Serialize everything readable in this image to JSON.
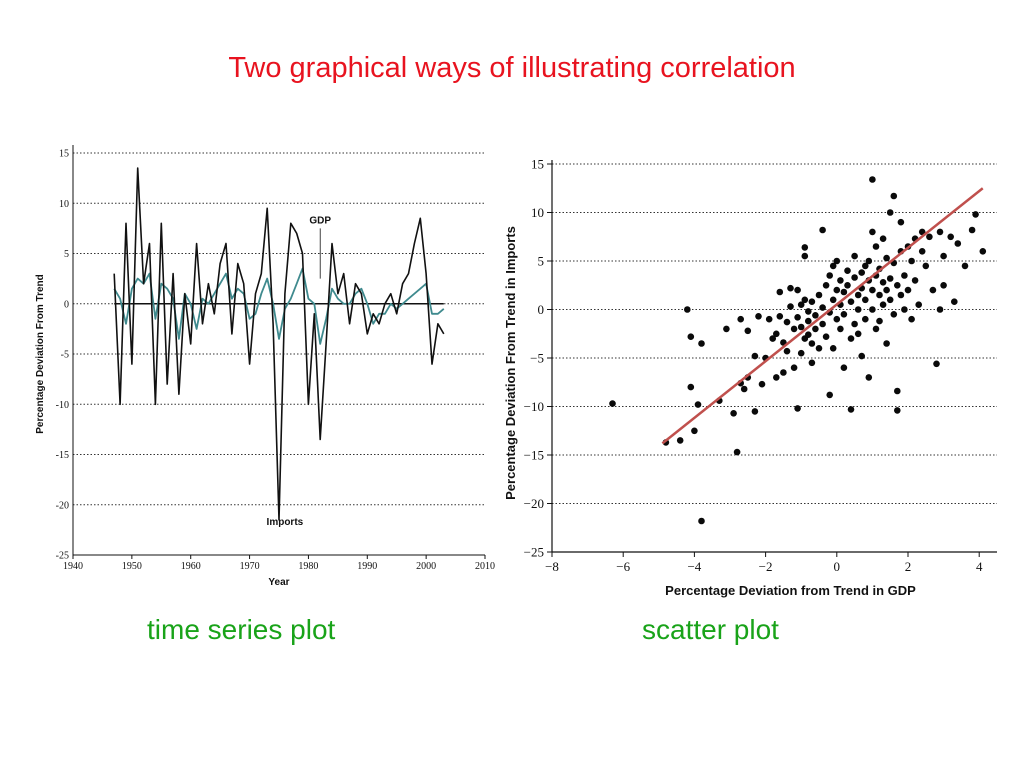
{
  "title": "Two graphical ways of illustrating correlation",
  "captions": {
    "left": "time series plot",
    "right": "scatter plot"
  },
  "colors": {
    "title": "#e8131f",
    "caption": "#19a319",
    "gdp": "#3f8a8e",
    "imports": "#111111",
    "fit": "#c0504d"
  },
  "chart_data": [
    {
      "type": "line",
      "xlabel": "Year",
      "ylabel": "Percentage Deviation From Trend",
      "xlim": [
        1940,
        2010
      ],
      "ylim": [
        -25,
        15
      ],
      "xticks": [
        1940,
        1950,
        1960,
        1970,
        1980,
        1990,
        2000,
        2010
      ],
      "yticks": [
        15,
        10,
        5,
        0,
        -5,
        -10,
        -15,
        -20,
        -25
      ],
      "grid": "horizontal dotted",
      "annotations": [
        {
          "text": "GDP",
          "x": 1982,
          "y": 8
        },
        {
          "text": "Imports",
          "x": 1976,
          "y": -22
        }
      ],
      "series": [
        {
          "name": "GDP",
          "x": [
            1947,
            1948,
            1949,
            1950,
            1951,
            1952,
            1953,
            1954,
            1955,
            1956,
            1957,
            1958,
            1959,
            1960,
            1961,
            1962,
            1963,
            1964,
            1965,
            1966,
            1967,
            1968,
            1969,
            1970,
            1971,
            1972,
            1973,
            1974,
            1975,
            1976,
            1977,
            1978,
            1979,
            1980,
            1981,
            1982,
            1983,
            1984,
            1985,
            1986,
            1987,
            1988,
            1989,
            1990,
            1991,
            1992,
            1993,
            1994,
            1995,
            1996,
            1997,
            1998,
            1999,
            2000,
            2001,
            2002,
            2003
          ],
          "values": [
            1.5,
            0.5,
            -2.0,
            1.5,
            2.5,
            2.0,
            3.0,
            -1.5,
            2.0,
            1.5,
            0.5,
            -3.5,
            1.0,
            0.0,
            -2.5,
            0.5,
            0.0,
            1.0,
            2.0,
            3.0,
            0.5,
            1.5,
            1.0,
            -1.5,
            -1.0,
            1.0,
            2.5,
            0.0,
            -3.5,
            -0.5,
            0.5,
            2.0,
            3.5,
            0.5,
            0.0,
            -4.0,
            -1.5,
            1.5,
            0.5,
            0.0,
            0.0,
            1.0,
            1.5,
            0.0,
            -2.0,
            -1.0,
            -1.0,
            0.0,
            -0.5,
            0.0,
            0.5,
            1.0,
            1.5,
            2.0,
            -1.0,
            -1.0,
            -0.5
          ]
        },
        {
          "name": "Imports",
          "x": [
            1947,
            1948,
            1949,
            1950,
            1951,
            1952,
            1953,
            1954,
            1955,
            1956,
            1957,
            1958,
            1959,
            1960,
            1961,
            1962,
            1963,
            1964,
            1965,
            1966,
            1967,
            1968,
            1969,
            1970,
            1971,
            1972,
            1973,
            1974,
            1975,
            1976,
            1977,
            1978,
            1979,
            1980,
            1981,
            1982,
            1983,
            1984,
            1985,
            1986,
            1987,
            1988,
            1989,
            1990,
            1991,
            1992,
            1993,
            1994,
            1995,
            1996,
            1997,
            1998,
            1999,
            2000,
            2001,
            2002,
            2003
          ],
          "values": [
            3.0,
            -10.0,
            8.0,
            -6.0,
            13.5,
            2.0,
            6.0,
            -10.0,
            8.0,
            -8.0,
            3.0,
            -9.0,
            1.0,
            -4.0,
            6.0,
            -2.0,
            2.0,
            -1.0,
            4.0,
            6.0,
            -3.0,
            4.0,
            2.0,
            -6.0,
            1.0,
            3.0,
            9.5,
            -2.0,
            -21.5,
            1.0,
            8.0,
            7.0,
            5.0,
            -10.0,
            -1.0,
            -13.5,
            -4.0,
            6.0,
            1.0,
            3.0,
            -2.0,
            2.0,
            1.0,
            -3.0,
            -1.0,
            -2.0,
            0.0,
            1.0,
            -1.0,
            2.0,
            3.0,
            6.0,
            8.5,
            3.0,
            -6.0,
            -2.0,
            -3.0
          ]
        }
      ]
    },
    {
      "type": "scatter",
      "xlabel": "Percentage Deviation from Trend in GDP",
      "ylabel": "Percentage Deviation From Trend in Imports",
      "xlim": [
        -8,
        4.5
      ],
      "ylim": [
        -25,
        15
      ],
      "xticks": [
        -8,
        -6,
        -4,
        -2,
        0,
        2,
        4
      ],
      "xticklabels": [
        "−8",
        "−6",
        "−4",
        "−2",
        "0",
        "2",
        "4"
      ],
      "yticks": [
        15,
        10,
        5,
        0,
        -5,
        -10,
        -15,
        -20,
        -25
      ],
      "yticklabels": [
        "15",
        "10",
        "5",
        "0",
        "−5",
        "−10",
        "−15",
        "−20",
        "−25"
      ],
      "grid": "horizontal dotted",
      "fit_line": {
        "x": [
          -4.9,
          4.1
        ],
        "y": [
          -13.8,
          12.5
        ]
      },
      "points": [
        [
          -6.3,
          -9.7
        ],
        [
          -4.8,
          -13.7
        ],
        [
          -4.4,
          -13.5
        ],
        [
          -4.2,
          0.0
        ],
        [
          -4.1,
          -8.0
        ],
        [
          -4.1,
          -2.8
        ],
        [
          -4.0,
          -12.5
        ],
        [
          -3.9,
          -9.8
        ],
        [
          -3.8,
          -21.8
        ],
        [
          -3.8,
          -3.5
        ],
        [
          -3.3,
          -9.4
        ],
        [
          -3.1,
          -2.0
        ],
        [
          -2.9,
          -10.7
        ],
        [
          -2.8,
          -14.7
        ],
        [
          -2.7,
          -7.6
        ],
        [
          -2.7,
          -1.0
        ],
        [
          -2.6,
          -8.2
        ],
        [
          -2.5,
          -7.0
        ],
        [
          -2.5,
          -2.2
        ],
        [
          -2.3,
          -10.5
        ],
        [
          -2.3,
          -4.8
        ],
        [
          -2.2,
          -0.7
        ],
        [
          -2.1,
          -7.7
        ],
        [
          -2.0,
          -5.0
        ],
        [
          -1.9,
          -1.0
        ],
        [
          -1.8,
          -3.0
        ],
        [
          -1.7,
          -7.0
        ],
        [
          -1.7,
          -2.5
        ],
        [
          -1.6,
          -0.7
        ],
        [
          -1.6,
          1.8
        ],
        [
          -1.5,
          -6.5
        ],
        [
          -1.5,
          -3.4
        ],
        [
          -1.4,
          -4.3
        ],
        [
          -1.4,
          -1.3
        ],
        [
          -1.3,
          2.2
        ],
        [
          -1.3,
          0.3
        ],
        [
          -1.2,
          -6.0
        ],
        [
          -1.2,
          -2.0
        ],
        [
          -1.1,
          -10.2
        ],
        [
          -1.1,
          -0.8
        ],
        [
          -1.1,
          2.0
        ],
        [
          -1.0,
          -4.5
        ],
        [
          -1.0,
          -1.8
        ],
        [
          -1.0,
          0.5
        ],
        [
          -0.9,
          6.4
        ],
        [
          -0.9,
          5.5
        ],
        [
          -0.9,
          -3.0
        ],
        [
          -0.9,
          1.0
        ],
        [
          -0.8,
          -1.2
        ],
        [
          -0.8,
          -0.2
        ],
        [
          -0.8,
          -2.6
        ],
        [
          -0.7,
          -3.5
        ],
        [
          -0.7,
          -5.5
        ],
        [
          -0.7,
          0.8
        ],
        [
          -0.6,
          -2.0
        ],
        [
          -0.6,
          -0.6
        ],
        [
          -0.5,
          1.5
        ],
        [
          -0.5,
          -4.0
        ],
        [
          -0.4,
          8.2
        ],
        [
          -0.4,
          -1.5
        ],
        [
          -0.4,
          0.2
        ],
        [
          -0.3,
          2.5
        ],
        [
          -0.3,
          -2.8
        ],
        [
          -0.2,
          -8.8
        ],
        [
          -0.2,
          3.5
        ],
        [
          -0.2,
          -0.3
        ],
        [
          -0.1,
          4.5
        ],
        [
          -0.1,
          1.0
        ],
        [
          -0.1,
          -4.0
        ],
        [
          0.0,
          2.0
        ],
        [
          0.0,
          -1.0
        ],
        [
          0.0,
          5.0
        ],
        [
          0.1,
          0.5
        ],
        [
          0.1,
          -2.0
        ],
        [
          0.1,
          3.0
        ],
        [
          0.2,
          1.8
        ],
        [
          0.2,
          -6.0
        ],
        [
          0.2,
          -0.5
        ],
        [
          0.3,
          4.0
        ],
        [
          0.3,
          2.5
        ],
        [
          0.4,
          -10.3
        ],
        [
          0.4,
          0.8
        ],
        [
          0.4,
          -3.0
        ],
        [
          0.5,
          3.3
        ],
        [
          0.5,
          -1.5
        ],
        [
          0.5,
          5.5
        ],
        [
          0.6,
          1.5
        ],
        [
          0.6,
          0.0
        ],
        [
          0.6,
          -2.5
        ],
        [
          0.7,
          3.8
        ],
        [
          0.7,
          2.2
        ],
        [
          0.7,
          -4.8
        ],
        [
          0.8,
          4.5
        ],
        [
          0.8,
          1.0
        ],
        [
          0.8,
          -1.0
        ],
        [
          0.9,
          3.0
        ],
        [
          0.9,
          -7.0
        ],
        [
          0.9,
          5.0
        ],
        [
          1.0,
          2.0
        ],
        [
          1.0,
          13.4
        ],
        [
          1.0,
          8.0
        ],
        [
          1.0,
          0.0
        ],
        [
          1.1,
          3.5
        ],
        [
          1.1,
          -2.0
        ],
        [
          1.1,
          6.5
        ],
        [
          1.2,
          1.5
        ],
        [
          1.2,
          4.2
        ],
        [
          1.2,
          -1.2
        ],
        [
          1.3,
          7.3
        ],
        [
          1.3,
          2.8
        ],
        [
          1.3,
          0.5
        ],
        [
          1.4,
          5.3
        ],
        [
          1.4,
          -3.5
        ],
        [
          1.4,
          2.0
        ],
        [
          1.5,
          10.0
        ],
        [
          1.5,
          3.2
        ],
        [
          1.5,
          1.0
        ],
        [
          1.6,
          11.7
        ],
        [
          1.6,
          -0.5
        ],
        [
          1.6,
          4.8
        ],
        [
          1.7,
          2.5
        ],
        [
          1.7,
          -8.4
        ],
        [
          1.7,
          -10.4
        ],
        [
          1.8,
          9.0
        ],
        [
          1.8,
          6.0
        ],
        [
          1.8,
          1.5
        ],
        [
          1.9,
          3.5
        ],
        [
          1.9,
          0.0
        ],
        [
          2.0,
          6.5
        ],
        [
          2.0,
          2.0
        ],
        [
          2.1,
          -1.0
        ],
        [
          2.1,
          5.0
        ],
        [
          2.2,
          7.3
        ],
        [
          2.2,
          3.0
        ],
        [
          2.3,
          0.5
        ],
        [
          2.4,
          8.0
        ],
        [
          2.4,
          6.0
        ],
        [
          2.5,
          4.5
        ],
        [
          2.6,
          7.5
        ],
        [
          2.7,
          2.0
        ],
        [
          2.8,
          -5.6
        ],
        [
          2.9,
          8.0
        ],
        [
          3.0,
          2.5
        ],
        [
          3.0,
          5.5
        ],
        [
          3.2,
          7.5
        ],
        [
          3.3,
          0.8
        ],
        [
          3.4,
          6.8
        ],
        [
          3.6,
          4.5
        ],
        [
          3.8,
          8.2
        ],
        [
          3.9,
          9.8
        ],
        [
          4.1,
          6.0
        ],
        [
          2.9,
          0.0
        ]
      ]
    }
  ]
}
